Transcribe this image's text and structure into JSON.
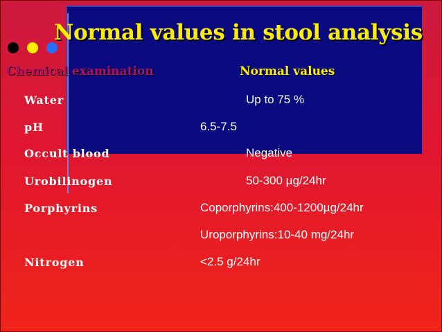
{
  "title": "Normal values in stool analysis",
  "headers": {
    "chemical": "Chemical examination",
    "normal": "Normal values"
  },
  "rows": [
    {
      "param": "Water",
      "value": "Up to 75 %"
    },
    {
      "param": "pH",
      "value": "6.5-7.5"
    },
    {
      "param": "Occult blood",
      "value": "Negative"
    },
    {
      "param": "Urobilinogen",
      "value": "50-300 µg/24hr"
    },
    {
      "param": "Porphyrins",
      "value": "Coporphyrins:400-1200µg/24hr"
    },
    {
      "param": "",
      "value": "Uroporphyrins:10-40 mg/24hr"
    },
    {
      "param": "Nitrogen",
      "value": "<2.5 g/24hr"
    }
  ],
  "colors": {
    "title": "#ffee00",
    "box": "#0a0a80",
    "background_top": "#cc1a3e",
    "background_bottom": "#f02418"
  }
}
